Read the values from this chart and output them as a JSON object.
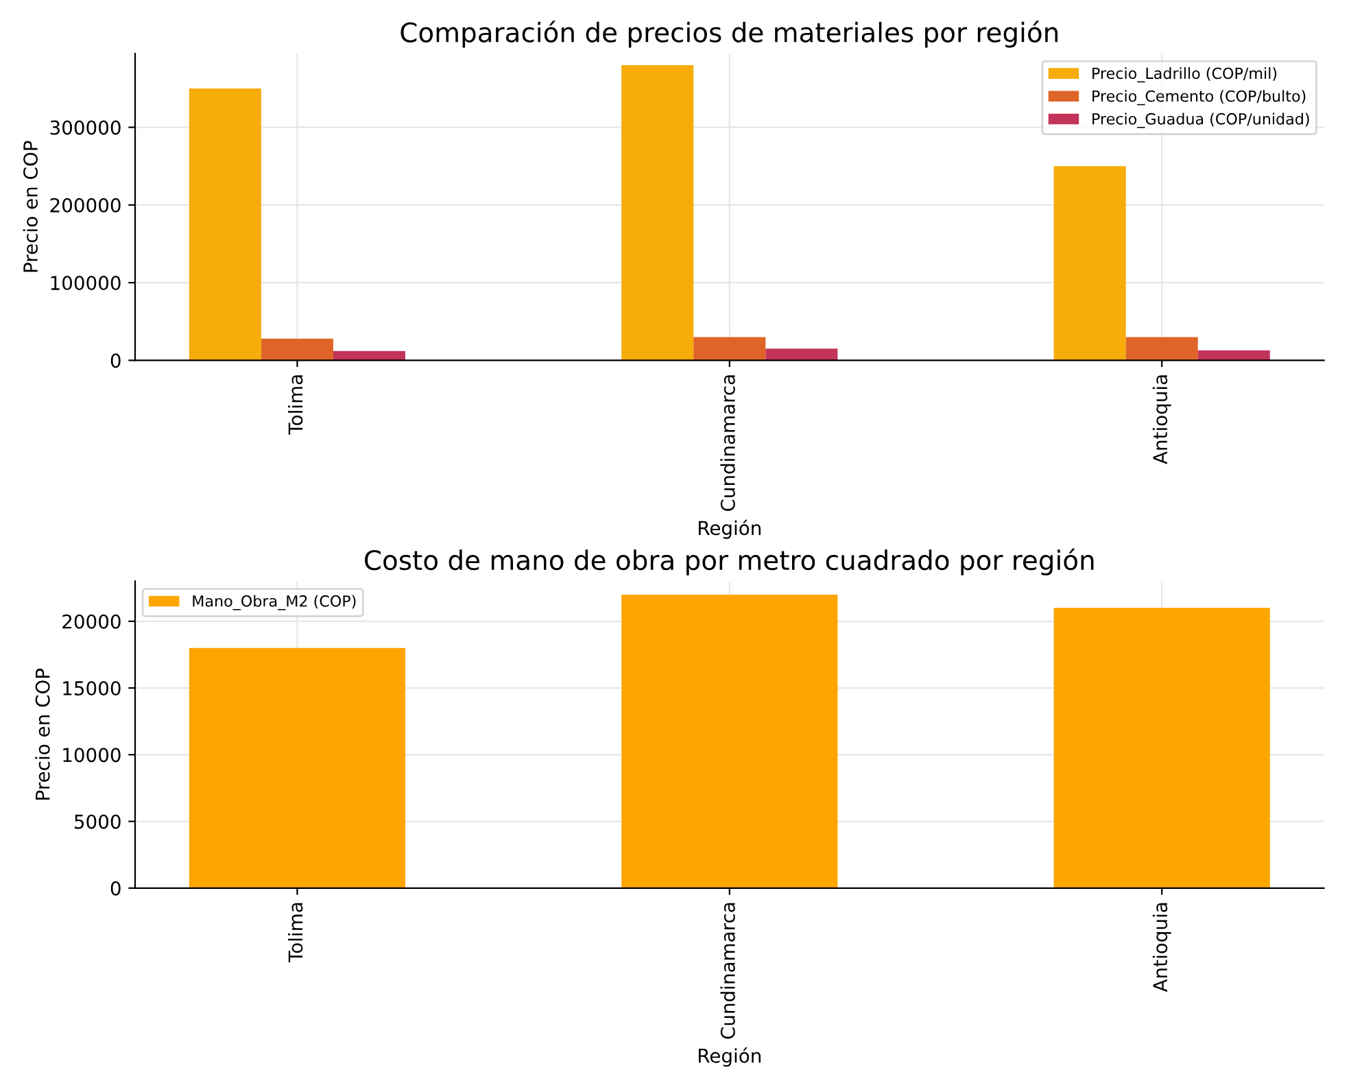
{
  "chart_data": [
    {
      "type": "bar",
      "title": "Comparación de precios de materiales por región",
      "xlabel": "Región",
      "ylabel": "Precio en COP",
      "categories": [
        "Tolima",
        "Cundinamarca",
        "Antioquia"
      ],
      "series": [
        {
          "name": "Precio_Ladrillo (COP/mil)",
          "color": "#f7ac0a",
          "values": [
            350000,
            380000,
            250000
          ]
        },
        {
          "name": "Precio_Cemento (COP/bulto)",
          "color": "#de6428",
          "values": [
            28000,
            30000,
            30000
          ]
        },
        {
          "name": "Precio_Guadua (COP/unidad)",
          "color": "#c2345a",
          "values": [
            12000,
            15000,
            13000
          ]
        }
      ],
      "ylim": [
        0,
        395000
      ],
      "yticks": [
        0,
        100000,
        200000,
        300000
      ],
      "grid": true,
      "legend": "top right"
    },
    {
      "type": "bar",
      "title": "Costo de mano de obra por metro cuadrado por región",
      "xlabel": "Región",
      "ylabel": "Precio en COP",
      "categories": [
        "Tolima",
        "Cundinamarca",
        "Antioquia"
      ],
      "series": [
        {
          "name": "Mano_Obra_M2 (COP)",
          "color": "#ffa500",
          "values": [
            18000,
            22000,
            21000
          ]
        }
      ],
      "ylim": [
        0,
        23000
      ],
      "yticks": [
        0,
        5000,
        10000,
        15000,
        20000
      ],
      "grid": true,
      "legend": "top left"
    }
  ]
}
